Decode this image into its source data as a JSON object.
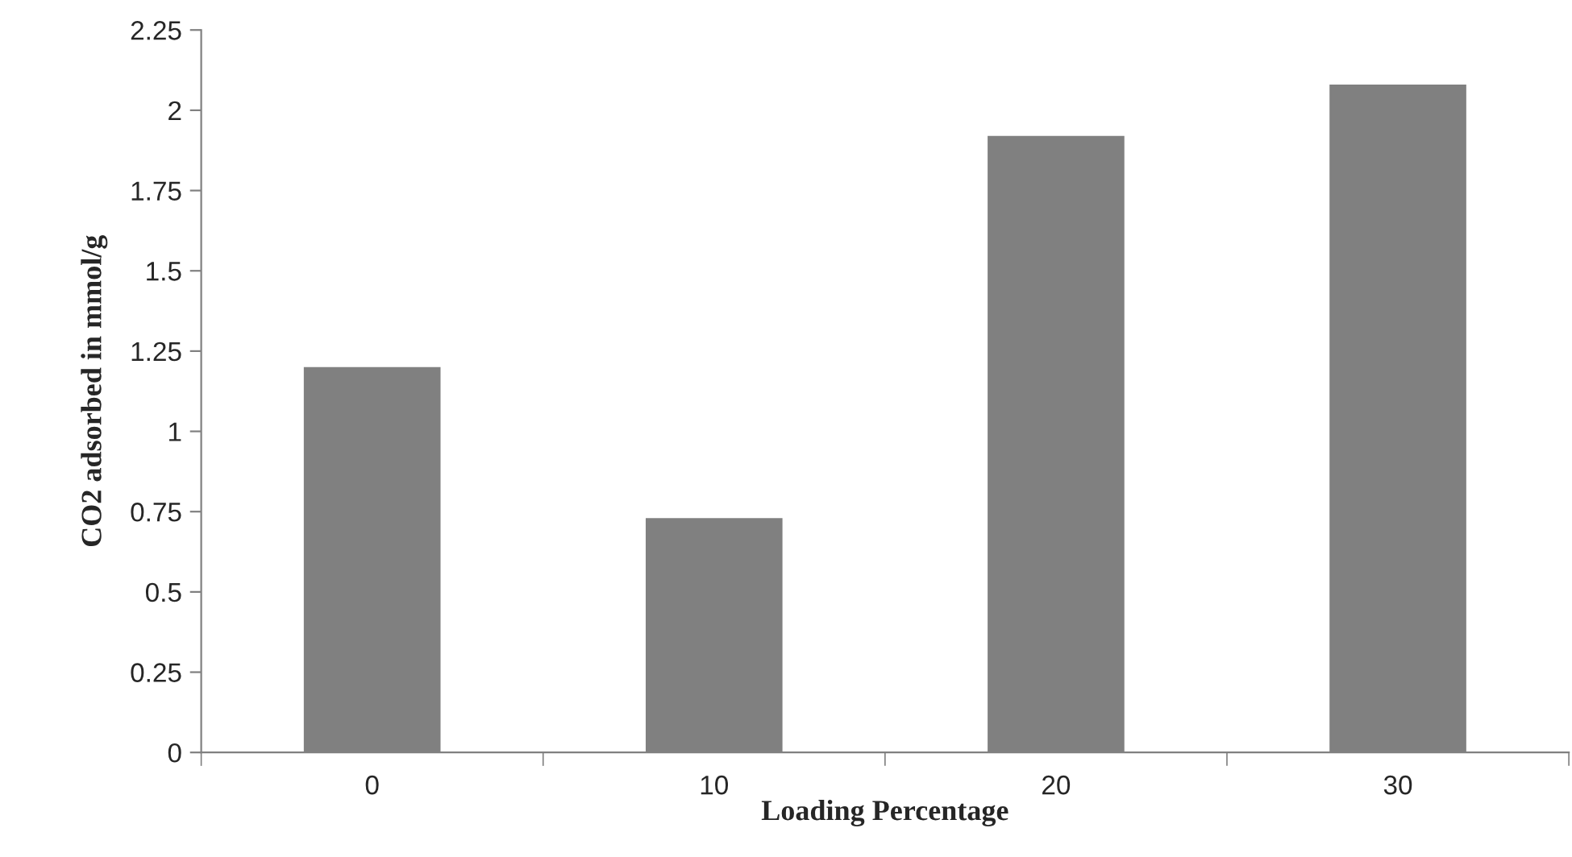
{
  "chart_data": {
    "type": "bar",
    "xlabel": "Loading Percentage",
    "ylabel": "CO2 adsorbed in mmol/g",
    "categories": [
      "0",
      "10",
      "20",
      "30"
    ],
    "values": [
      1.2,
      0.73,
      1.92,
      2.08
    ],
    "color": "#808080",
    "ylim": [
      0,
      2.25
    ],
    "yticks": [
      0,
      0.25,
      0.5,
      0.75,
      1,
      1.25,
      1.5,
      1.75,
      2,
      2.25
    ],
    "grid": false
  }
}
